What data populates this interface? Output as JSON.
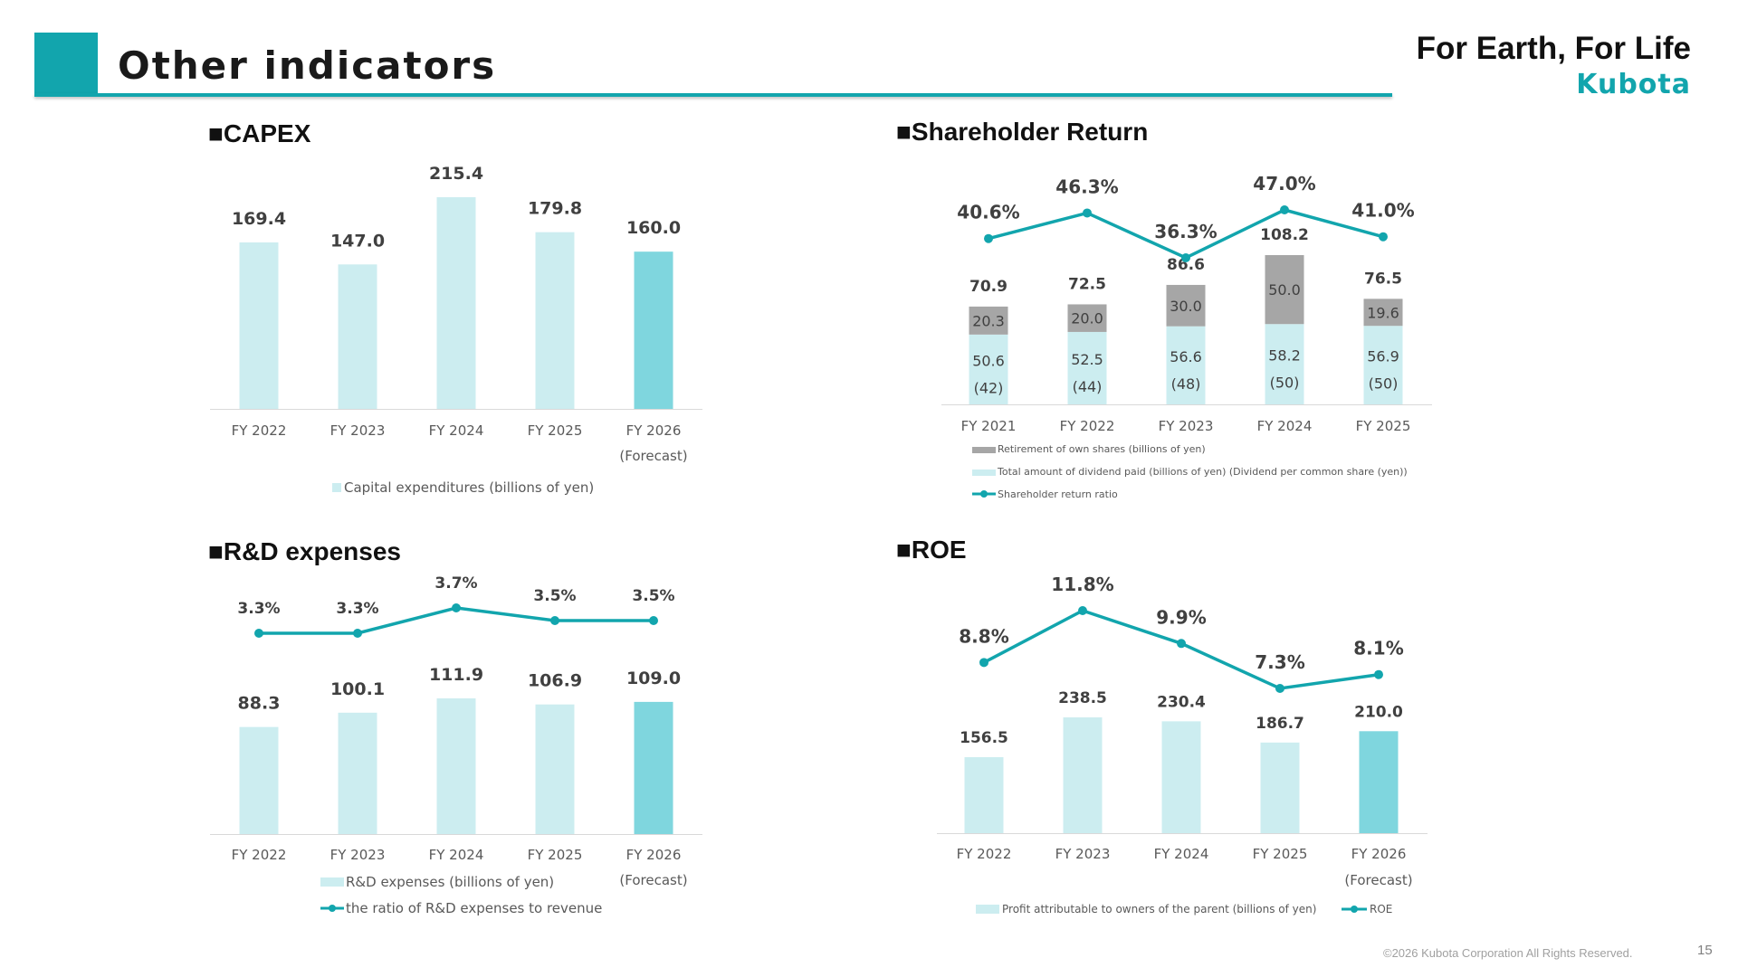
{
  "header": {
    "title": "Other indicators",
    "tagline": "For Earth, For Life",
    "logo_text": "Kubota"
  },
  "sections": {
    "capex": "■CAPEX",
    "shareholder": "■Shareholder Return",
    "rnd": "■R&D expenses",
    "roe": "■ROE"
  },
  "footer": {
    "copyright": "©2026 Kubota Corporation All Rights Reserved.",
    "page_number": "15"
  },
  "colors": {
    "bar_light": "#CCEDF0",
    "bar_forecast": "#7FD6DE",
    "bar_gray": "#A6A6A6",
    "line": "#12A5AD",
    "axis": "#D9D9D9"
  },
  "chart_data": [
    {
      "id": "capex",
      "type": "bar",
      "categories": [
        "FY 2022",
        "FY 2023",
        "FY 2024",
        "FY 2025",
        "FY 2026"
      ],
      "category_sublabels": [
        "",
        "",
        "",
        "",
        "(Forecast)"
      ],
      "series": [
        {
          "name": "Capital expenditures (billions of yen)",
          "values": [
            169.4,
            147.0,
            215.4,
            179.8,
            160.0
          ],
          "labels": [
            "169.4",
            "147.0",
            "215.4",
            "179.8",
            "160.0"
          ]
        }
      ],
      "forecast_index": 4
    },
    {
      "id": "shareholder",
      "type": "bar",
      "stacked": true,
      "categories": [
        "FY 2021",
        "FY 2022",
        "FY 2023",
        "FY 2024",
        "FY 2025"
      ],
      "series": [
        {
          "name": "Total amount of dividend paid (billions of yen) (Dividend per common share (yen))",
          "values": [
            50.6,
            52.5,
            56.6,
            58.2,
            56.9
          ],
          "labels": [
            "50.6",
            "52.5",
            "56.6",
            "58.2",
            "56.9"
          ],
          "sublabels": [
            "(42)",
            "(44)",
            "(48)",
            "(50)",
            "(50)"
          ]
        },
        {
          "name": "Retirement of own shares (billions of yen)",
          "values": [
            20.3,
            20.0,
            30.0,
            50.0,
            19.6
          ],
          "labels": [
            "20.3",
            "20.0",
            "30.0",
            "50.0",
            "19.6"
          ]
        }
      ],
      "totals": [
        "70.9",
        "72.5",
        "86.6",
        "108.2",
        "76.5"
      ],
      "line": {
        "name": "Shareholder return ratio",
        "values": [
          40.6,
          46.3,
          36.3,
          47.0,
          41.0
        ],
        "labels": [
          "40.6%",
          "46.3%",
          "36.3%",
          "47.0%",
          "41.0%"
        ]
      }
    },
    {
      "id": "rnd",
      "type": "bar",
      "categories": [
        "FY 2022",
        "FY 2023",
        "FY 2024",
        "FY 2025",
        "FY 2026"
      ],
      "category_sublabels": [
        "",
        "",
        "",
        "",
        "(Forecast)"
      ],
      "series": [
        {
          "name": "R&D expenses (billions of yen)",
          "values": [
            88.3,
            100.1,
            111.9,
            106.9,
            109.0
          ],
          "labels": [
            "88.3",
            "100.1",
            "111.9",
            "106.9",
            "109.0"
          ]
        }
      ],
      "line": {
        "name": "the ratio of R&D expenses to revenue",
        "values": [
          3.3,
          3.3,
          3.7,
          3.5,
          3.5
        ],
        "labels": [
          "3.3%",
          "3.3%",
          "3.7%",
          "3.5%",
          "3.5%"
        ]
      },
      "forecast_index": 4
    },
    {
      "id": "roe",
      "type": "bar",
      "categories": [
        "FY 2022",
        "FY 2023",
        "FY 2024",
        "FY 2025",
        "FY 2026"
      ],
      "category_sublabels": [
        "",
        "",
        "",
        "",
        "(Forecast)"
      ],
      "series": [
        {
          "name": "Profit attributable to owners of the parent (billions of yen)",
          "values": [
            156.5,
            238.5,
            230.4,
            186.7,
            210.0
          ],
          "labels": [
            "156.5",
            "238.5",
            "230.4",
            "186.7",
            "210.0"
          ]
        }
      ],
      "line": {
        "name": "ROE",
        "values": [
          8.8,
          11.8,
          9.9,
          7.3,
          8.1
        ],
        "labels": [
          "8.8%",
          "11.8%",
          "9.9%",
          "7.3%",
          "8.1%"
        ]
      },
      "forecast_index": 4
    }
  ]
}
